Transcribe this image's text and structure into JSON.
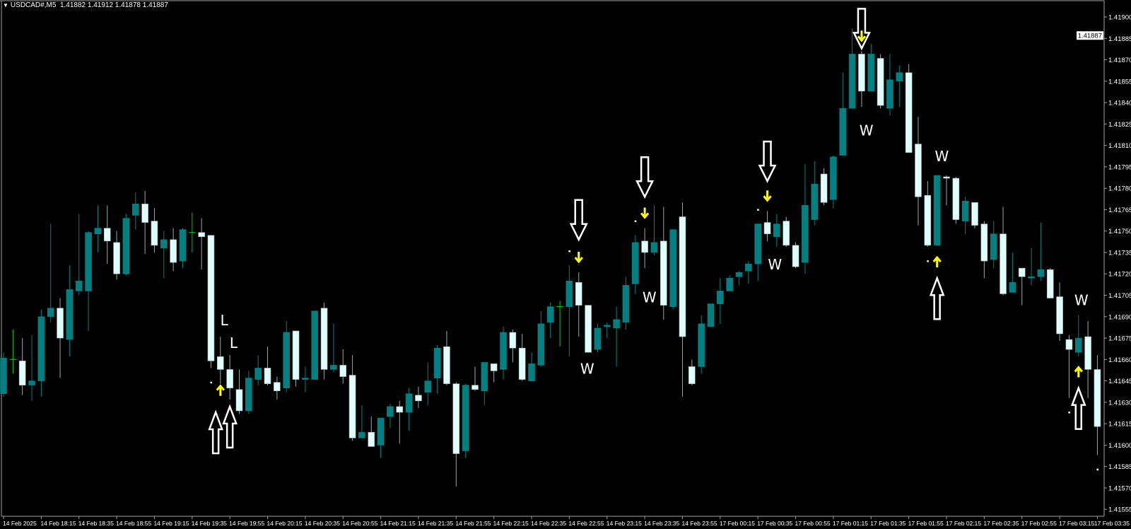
{
  "header": {
    "symbol": "USDCAD#,M5",
    "ohlc": "1.41882 1.41912 1.41878 1.41887",
    "menu_icon": "triangle-down-icon"
  },
  "colors": {
    "background": "#000000",
    "bull_body": "#008080",
    "bear_body": "#e0ffff",
    "bear_wick": "#a0a8a8",
    "doji": "#00c800",
    "axis": "#a0a0a0",
    "signal_arrow": "#ffff00",
    "marker": "#ffffff"
  },
  "chart_data": {
    "type": "candlestick",
    "timeframe": "M5",
    "current_price": "1.41887",
    "ylim": [
      1.41545,
      1.41918
    ],
    "y_ticks": [
      "1.41900",
      "1.41885",
      "1.41870",
      "1.41855",
      "1.41840",
      "1.41825",
      "1.41810",
      "1.41795",
      "1.41780",
      "1.41765",
      "1.41750",
      "1.41735",
      "1.41720",
      "1.41705",
      "1.41690",
      "1.41675",
      "1.41660",
      "1.41645",
      "1.41630",
      "1.41615",
      "1.41600",
      "1.41585",
      "1.41570",
      "1.41555"
    ],
    "x_ticks": [
      {
        "bar": 0,
        "label": "14 Feb 2025"
      },
      {
        "bar": 4,
        "label": "14 Feb 18:15"
      },
      {
        "bar": 8,
        "label": "14 Feb 18:35"
      },
      {
        "bar": 12,
        "label": "14 Feb 18:55"
      },
      {
        "bar": 16,
        "label": "14 Feb 19:15"
      },
      {
        "bar": 20,
        "label": "14 Feb 19:35"
      },
      {
        "bar": 24,
        "label": "14 Feb 19:55"
      },
      {
        "bar": 28,
        "label": "14 Feb 20:15"
      },
      {
        "bar": 32,
        "label": "14 Feb 20:35"
      },
      {
        "bar": 36,
        "label": "14 Feb 20:55"
      },
      {
        "bar": 40,
        "label": "14 Feb 21:15"
      },
      {
        "bar": 44,
        "label": "14 Feb 21:35"
      },
      {
        "bar": 48,
        "label": "14 Feb 21:55"
      },
      {
        "bar": 52,
        "label": "14 Feb 22:15"
      },
      {
        "bar": 56,
        "label": "14 Feb 22:35"
      },
      {
        "bar": 60,
        "label": "14 Feb 22:55"
      },
      {
        "bar": 64,
        "label": "14 Feb 23:15"
      },
      {
        "bar": 68,
        "label": "14 Feb 23:35"
      },
      {
        "bar": 72,
        "label": "14 Feb 23:55"
      },
      {
        "bar": 76,
        "label": "17 Feb 00:15"
      },
      {
        "bar": 80,
        "label": "17 Feb 00:35"
      },
      {
        "bar": 84,
        "label": "17 Feb 00:55"
      },
      {
        "bar": 88,
        "label": "17 Feb 01:15"
      },
      {
        "bar": 92,
        "label": "17 Feb 01:35"
      },
      {
        "bar": 96,
        "label": "17 Feb 01:55"
      },
      {
        "bar": 100,
        "label": "17 Feb 02:15"
      },
      {
        "bar": 104,
        "label": "17 Feb 02:35"
      },
      {
        "bar": 108,
        "label": "17 Feb 02:55"
      },
      {
        "bar": 112,
        "label": "17 Feb 03:15"
      },
      {
        "bar": 116,
        "label": "17 Feb 03:35"
      }
    ],
    "ohlc_fields": [
      "open",
      "high",
      "low",
      "close"
    ],
    "candles": [
      [
        1.41636,
        1.41665,
        1.41634,
        1.41661
      ],
      [
        1.4166,
        1.41681,
        1.4165,
        1.4166
      ],
      [
        1.41659,
        1.41675,
        1.41635,
        1.41642
      ],
      [
        1.41642,
        1.41677,
        1.41631,
        1.41645
      ],
      [
        1.41645,
        1.41695,
        1.41634,
        1.4169
      ],
      [
        1.4169,
        1.41755,
        1.41686,
        1.41696
      ],
      [
        1.41696,
        1.41703,
        1.41647,
        1.41675
      ],
      [
        1.41674,
        1.41726,
        1.41662,
        1.41709
      ],
      [
        1.41708,
        1.41762,
        1.41705,
        1.41715
      ],
      [
        1.41708,
        1.4175,
        1.4168,
        1.41749
      ],
      [
        1.41748,
        1.41768,
        1.41735,
        1.41752
      ],
      [
        1.41752,
        1.41768,
        1.41727,
        1.41743
      ],
      [
        1.41742,
        1.4175,
        1.41716,
        1.4172
      ],
      [
        1.4172,
        1.41762,
        1.41719,
        1.41759
      ],
      [
        1.41761,
        1.41777,
        1.41751,
        1.41769
      ],
      [
        1.41769,
        1.41778,
        1.41734,
        1.41756
      ],
      [
        1.41757,
        1.41766,
        1.41735,
        1.4174
      ],
      [
        1.41738,
        1.4175,
        1.41717,
        1.41744
      ],
      [
        1.41744,
        1.41752,
        1.41722,
        1.41728
      ],
      [
        1.41729,
        1.41752,
        1.41724,
        1.41751
      ],
      [
        1.41749,
        1.41763,
        1.41735,
        1.41749
      ],
      [
        1.41749,
        1.41759,
        1.41723,
        1.41746
      ],
      [
        1.41747,
        1.41747,
        1.41654,
        1.41659
      ],
      [
        1.41662,
        1.41676,
        1.41643,
        1.41653
      ],
      [
        1.41653,
        1.41663,
        1.41632,
        1.4164
      ],
      [
        1.41639,
        1.41653,
        1.41622,
        1.41624
      ],
      [
        1.41624,
        1.41652,
        1.41622,
        1.41647
      ],
      [
        1.41646,
        1.41663,
        1.41642,
        1.41654
      ],
      [
        1.41654,
        1.41669,
        1.41642,
        1.41643
      ],
      [
        1.41644,
        1.41648,
        1.41632,
        1.41638
      ],
      [
        1.4164,
        1.41687,
        1.41637,
        1.41679
      ],
      [
        1.4168,
        1.4168,
        1.41641,
        1.41646
      ],
      [
        1.41646,
        1.41655,
        1.41637,
        1.41647
      ],
      [
        1.41646,
        1.41694,
        1.41646,
        1.41694
      ],
      [
        1.41696,
        1.417,
        1.41646,
        1.41653
      ],
      [
        1.41653,
        1.41685,
        1.41651,
        1.41656
      ],
      [
        1.41656,
        1.41667,
        1.41643,
        1.41648
      ],
      [
        1.41649,
        1.41663,
        1.41603,
        1.41605
      ],
      [
        1.41605,
        1.41628,
        1.41605,
        1.41609
      ],
      [
        1.41609,
        1.4162,
        1.41599,
        1.41599
      ],
      [
        1.416,
        1.41619,
        1.41591,
        1.41619
      ],
      [
        1.4162,
        1.41629,
        1.41612,
        1.41627
      ],
      [
        1.41627,
        1.41631,
        1.41601,
        1.41623
      ],
      [
        1.41623,
        1.4164,
        1.4161,
        1.41636
      ],
      [
        1.41635,
        1.41641,
        1.41626,
        1.41631
      ],
      [
        1.41637,
        1.41658,
        1.41628,
        1.41645
      ],
      [
        1.41647,
        1.4167,
        1.41636,
        1.41668
      ],
      [
        1.41669,
        1.4168,
        1.41642,
        1.41643
      ],
      [
        1.41643,
        1.41644,
        1.41571,
        1.41594
      ],
      [
        1.41596,
        1.41643,
        1.41591,
        1.41642
      ],
      [
        1.41642,
        1.41655,
        1.41638,
        1.41639
      ],
      [
        1.41638,
        1.41658,
        1.41628,
        1.41658
      ],
      [
        1.41657,
        1.41657,
        1.41644,
        1.41652
      ],
      [
        1.41653,
        1.41683,
        1.41646,
        1.41679
      ],
      [
        1.41679,
        1.41681,
        1.41658,
        1.41668
      ],
      [
        1.41668,
        1.41678,
        1.41645,
        1.41646
      ],
      [
        1.41645,
        1.41665,
        1.41645,
        1.41657
      ],
      [
        1.41656,
        1.41694,
        1.41655,
        1.41685
      ],
      [
        1.41686,
        1.417,
        1.41675,
        1.41697
      ],
      [
        1.41697,
        1.41701,
        1.41669,
        1.41697
      ],
      [
        1.41697,
        1.41726,
        1.41662,
        1.41715
      ],
      [
        1.41714,
        1.41721,
        1.41676,
        1.41698
      ],
      [
        1.41698,
        1.41698,
        1.41665,
        1.41665
      ],
      [
        1.41667,
        1.41685,
        1.41665,
        1.41682
      ],
      [
        1.41683,
        1.41686,
        1.41675,
        1.41684
      ],
      [
        1.41682,
        1.41697,
        1.41655,
        1.41688
      ],
      [
        1.41686,
        1.41718,
        1.41681,
        1.41712
      ],
      [
        1.41713,
        1.41747,
        1.41706,
        1.41742
      ],
      [
        1.41743,
        1.41752,
        1.41724,
        1.41735
      ],
      [
        1.41735,
        1.41768,
        1.41733,
        1.41742
      ],
      [
        1.41743,
        1.41767,
        1.41688,
        1.41698
      ],
      [
        1.41697,
        1.41751,
        1.41695,
        1.41751
      ],
      [
        1.4176,
        1.4177,
        1.41634,
        1.41676
      ],
      [
        1.41655,
        1.4166,
        1.41642,
        1.41643
      ],
      [
        1.41655,
        1.41691,
        1.4165,
        1.41685
      ],
      [
        1.41683,
        1.41699,
        1.41683,
        1.41699
      ],
      [
        1.41699,
        1.41717,
        1.41685,
        1.41708
      ],
      [
        1.41708,
        1.41719,
        1.41708,
        1.41717
      ],
      [
        1.41718,
        1.41722,
        1.41712,
        1.41721
      ],
      [
        1.41722,
        1.41729,
        1.41713,
        1.41727
      ],
      [
        1.41727,
        1.41755,
        1.41715,
        1.41755
      ],
      [
        1.41756,
        1.41764,
        1.41743,
        1.41748
      ],
      [
        1.41746,
        1.41762,
        1.41739,
        1.41755
      ],
      [
        1.41757,
        1.4176,
        1.41739,
        1.4174
      ],
      [
        1.4174,
        1.41742,
        1.41724,
        1.41725
      ],
      [
        1.41728,
        1.41797,
        1.4172,
        1.41768
      ],
      [
        1.41758,
        1.41799,
        1.41754,
        1.41783
      ],
      [
        1.4179,
        1.41794,
        1.41768,
        1.4177
      ],
      [
        1.41772,
        1.41803,
        1.41766,
        1.41802
      ],
      [
        1.41803,
        1.41861,
        1.41803,
        1.41836
      ],
      [
        1.41836,
        1.41892,
        1.41836,
        1.41874
      ],
      [
        1.41874,
        1.41876,
        1.41837,
        1.41848
      ],
      [
        1.41848,
        1.41881,
        1.41848,
        1.41874
      ],
      [
        1.41871,
        1.41874,
        1.41836,
        1.41838
      ],
      [
        1.41836,
        1.41874,
        1.41831,
        1.41856
      ],
      [
        1.41855,
        1.41866,
        1.41837,
        1.41861
      ],
      [
        1.41861,
        1.41867,
        1.41805,
        1.41805
      ],
      [
        1.41811,
        1.4183,
        1.41754,
        1.41774
      ],
      [
        1.41775,
        1.41785,
        1.41739,
        1.4174
      ],
      [
        1.4174,
        1.41789,
        1.4174,
        1.41789
      ],
      [
        1.41788,
        1.41789,
        1.41768,
        1.41787
      ],
      [
        1.41787,
        1.41788,
        1.41755,
        1.41758
      ],
      [
        1.41757,
        1.41774,
        1.41748,
        1.41771
      ],
      [
        1.4177,
        1.4177,
        1.41752,
        1.41754
      ],
      [
        1.41755,
        1.41757,
        1.41717,
        1.41729
      ],
      [
        1.4173,
        1.41757,
        1.41724,
        1.41748
      ],
      [
        1.41748,
        1.41767,
        1.41705,
        1.41706
      ],
      [
        1.41707,
        1.41735,
        1.41707,
        1.41714
      ],
      [
        1.41724,
        1.41724,
        1.41698,
        1.41718
      ],
      [
        1.41717,
        1.41738,
        1.41712,
        1.41718
      ],
      [
        1.41718,
        1.41756,
        1.41715,
        1.41723
      ],
      [
        1.41723,
        1.41724,
        1.41703,
        1.41703
      ],
      [
        1.41704,
        1.41714,
        1.41673,
        1.41678
      ],
      [
        1.41674,
        1.41677,
        1.41633,
        1.41667
      ],
      [
        1.41665,
        1.41691,
        1.41662,
        1.41675
      ],
      [
        1.41676,
        1.41687,
        1.41633,
        1.41653
      ],
      [
        1.41653,
        1.41663,
        1.41593,
        1.41613
      ]
    ],
    "signals": {
      "hollow_up_arrows": [
        {
          "bar": 22.5,
          "price": 1.41623
        },
        {
          "bar": 24,
          "price": 1.41627
        },
        {
          "bar": 99,
          "price": 1.41717
        },
        {
          "bar": 114,
          "price": 1.4164
        }
      ],
      "hollow_down_arrows": [
        {
          "bar": 61,
          "price": 1.41744
        },
        {
          "bar": 68,
          "price": 1.41774
        },
        {
          "bar": 81,
          "price": 1.41785
        },
        {
          "bar": 91,
          "price": 1.41878
        }
      ],
      "yellow_up_arrows": [
        {
          "bar": 23,
          "price": 1.41638
        },
        {
          "bar": 99,
          "price": 1.41728
        },
        {
          "bar": 114,
          "price": 1.41651
        }
      ],
      "yellow_down_arrows": [
        {
          "bar": 61,
          "price": 1.41732
        },
        {
          "bar": 68,
          "price": 1.41763
        },
        {
          "bar": 81,
          "price": 1.41775
        },
        {
          "bar": 91,
          "price": 1.41887
        }
      ],
      "dots": [
        {
          "bar": 22,
          "price": 1.41644
        },
        {
          "bar": 60,
          "price": 1.41736
        },
        {
          "bar": 67,
          "price": 1.41757
        },
        {
          "bar": 80,
          "price": 1.41765
        },
        {
          "bar": 98,
          "price": 1.41729
        },
        {
          "bar": 113,
          "price": 1.41623
        },
        {
          "bar": 116,
          "price": 1.41583
        }
      ],
      "labels": [
        {
          "bar": 23.4,
          "price": 1.41684,
          "text": "L"
        },
        {
          "bar": 24.4,
          "price": 1.41668,
          "text": "L"
        },
        {
          "bar": 61.9,
          "price": 1.4165,
          "text": "W"
        },
        {
          "bar": 68.5,
          "price": 1.417,
          "text": "W"
        },
        {
          "bar": 81.8,
          "price": 1.41723,
          "text": "W"
        },
        {
          "bar": 91.5,
          "price": 1.41817,
          "text": "W"
        },
        {
          "bar": 99.5,
          "price": 1.41799,
          "text": "W"
        },
        {
          "bar": 114.3,
          "price": 1.41698,
          "text": "W"
        }
      ]
    }
  }
}
